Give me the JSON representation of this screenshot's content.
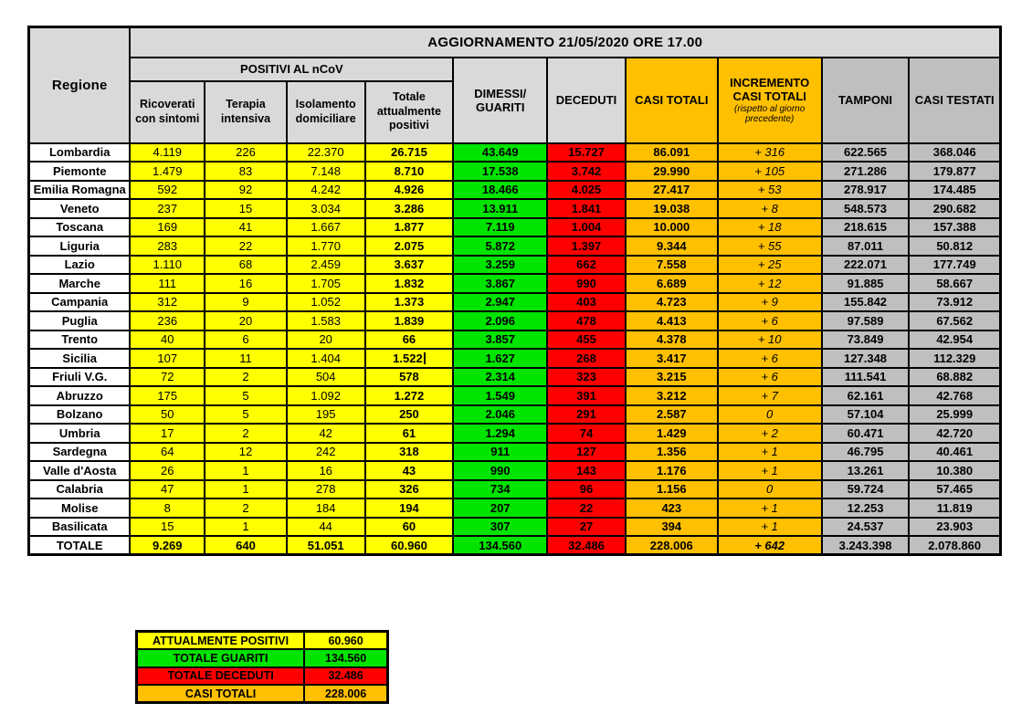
{
  "chart_data": {
    "type": "table",
    "title": "AGGIORNAMENTO 21/05/2020 ORE 17.00",
    "headers": {
      "regione": "Regione",
      "group_positivi": "POSITIVI AL nCoV",
      "ricoverati": "Ricoverati con sintomi",
      "terapia": "Terapia intensiva",
      "isolamento": "Isolamento domiciliare",
      "totale_positivi": "Totale attualmente positivi",
      "dimessi": "DIMESSI/ GUARITI",
      "deceduti": "DECEDUTI",
      "casi_totali": "CASI TOTALI",
      "incremento": "INCREMENTO CASI TOTALI",
      "incremento_note": "(rispetto al giorno precedente)",
      "tamponi": "TAMPONI",
      "casi_testati": "CASI TESTATI"
    },
    "rows": [
      {
        "regione": "Lombardia",
        "ricoverati": "4.119",
        "terapia": "226",
        "isolamento": "22.370",
        "totale_positivi": "26.715",
        "dimessi": "43.649",
        "deceduti": "15.727",
        "casi_totali": "86.091",
        "incremento": "+ 316",
        "tamponi": "622.565",
        "casi_testati": "368.046"
      },
      {
        "regione": "Piemonte",
        "ricoverati": "1.479",
        "terapia": "83",
        "isolamento": "7.148",
        "totale_positivi": "8.710",
        "dimessi": "17.538",
        "deceduti": "3.742",
        "casi_totali": "29.990",
        "incremento": "+ 105",
        "tamponi": "271.286",
        "casi_testati": "179.877"
      },
      {
        "regione": "Emilia Romagna",
        "ricoverati": "592",
        "terapia": "92",
        "isolamento": "4.242",
        "totale_positivi": "4.926",
        "dimessi": "18.466",
        "deceduti": "4.025",
        "casi_totali": "27.417",
        "incremento": "+ 53",
        "tamponi": "278.917",
        "casi_testati": "174.485"
      },
      {
        "regione": "Veneto",
        "ricoverati": "237",
        "terapia": "15",
        "isolamento": "3.034",
        "totale_positivi": "3.286",
        "dimessi": "13.911",
        "deceduti": "1.841",
        "casi_totali": "19.038",
        "incremento": "+ 8",
        "tamponi": "548.573",
        "casi_testati": "290.682"
      },
      {
        "regione": "Toscana",
        "ricoverati": "169",
        "terapia": "41",
        "isolamento": "1.667",
        "totale_positivi": "1.877",
        "dimessi": "7.119",
        "deceduti": "1.004",
        "casi_totali": "10.000",
        "incremento": "+ 18",
        "tamponi": "218.615",
        "casi_testati": "157.388"
      },
      {
        "regione": "Liguria",
        "ricoverati": "283",
        "terapia": "22",
        "isolamento": "1.770",
        "totale_positivi": "2.075",
        "dimessi": "5.872",
        "deceduti": "1.397",
        "casi_totali": "9.344",
        "incremento": "+ 55",
        "tamponi": "87.011",
        "casi_testati": "50.812"
      },
      {
        "regione": "Lazio",
        "ricoverati": "1.110",
        "terapia": "68",
        "isolamento": "2.459",
        "totale_positivi": "3.637",
        "dimessi": "3.259",
        "deceduti": "662",
        "casi_totali": "7.558",
        "incremento": "+ 25",
        "tamponi": "222.071",
        "casi_testati": "177.749"
      },
      {
        "regione": "Marche",
        "ricoverati": "111",
        "terapia": "16",
        "isolamento": "1.705",
        "totale_positivi": "1.832",
        "dimessi": "3.867",
        "deceduti": "990",
        "casi_totali": "6.689",
        "incremento": "+ 12",
        "tamponi": "91.885",
        "casi_testati": "58.667"
      },
      {
        "regione": "Campania",
        "ricoverati": "312",
        "terapia": "9",
        "isolamento": "1.052",
        "totale_positivi": "1.373",
        "dimessi": "2.947",
        "deceduti": "403",
        "casi_totali": "4.723",
        "incremento": "+ 9",
        "tamponi": "155.842",
        "casi_testati": "73.912"
      },
      {
        "regione": "Puglia",
        "ricoverati": "236",
        "terapia": "20",
        "isolamento": "1.583",
        "totale_positivi": "1.839",
        "dimessi": "2.096",
        "deceduti": "478",
        "casi_totali": "4.413",
        "incremento": "+ 6",
        "tamponi": "97.589",
        "casi_testati": "67.562"
      },
      {
        "regione": "Trento",
        "ricoverati": "40",
        "terapia": "6",
        "isolamento": "20",
        "totale_positivi": "66",
        "dimessi": "3.857",
        "deceduti": "455",
        "casi_totali": "4.378",
        "incremento": "+ 10",
        "tamponi": "73.849",
        "casi_testati": "42.954"
      },
      {
        "regione": "Sicilia",
        "ricoverati": "107",
        "terapia": "11",
        "isolamento": "1.404",
        "totale_positivi": "1.522",
        "dimessi": "1.627",
        "deceduti": "268",
        "casi_totali": "3.417",
        "incremento": "+ 6",
        "tamponi": "127.348",
        "casi_testati": "112.329"
      },
      {
        "regione": "Friuli V.G.",
        "ricoverati": "72",
        "terapia": "2",
        "isolamento": "504",
        "totale_positivi": "578",
        "dimessi": "2.314",
        "deceduti": "323",
        "casi_totali": "3.215",
        "incremento": "+ 6",
        "tamponi": "111.541",
        "casi_testati": "68.882"
      },
      {
        "regione": "Abruzzo",
        "ricoverati": "175",
        "terapia": "5",
        "isolamento": "1.092",
        "totale_positivi": "1.272",
        "dimessi": "1.549",
        "deceduti": "391",
        "casi_totali": "3.212",
        "incremento": "+ 7",
        "tamponi": "62.161",
        "casi_testati": "42.768"
      },
      {
        "regione": "Bolzano",
        "ricoverati": "50",
        "terapia": "5",
        "isolamento": "195",
        "totale_positivi": "250",
        "dimessi": "2.046",
        "deceduti": "291",
        "casi_totali": "2.587",
        "incremento": "0",
        "tamponi": "57.104",
        "casi_testati": "25.999"
      },
      {
        "regione": "Umbria",
        "ricoverati": "17",
        "terapia": "2",
        "isolamento": "42",
        "totale_positivi": "61",
        "dimessi": "1.294",
        "deceduti": "74",
        "casi_totali": "1.429",
        "incremento": "+ 2",
        "tamponi": "60.471",
        "casi_testati": "42.720"
      },
      {
        "regione": "Sardegna",
        "ricoverati": "64",
        "terapia": "12",
        "isolamento": "242",
        "totale_positivi": "318",
        "dimessi": "911",
        "deceduti": "127",
        "casi_totali": "1.356",
        "incremento": "+ 1",
        "tamponi": "46.795",
        "casi_testati": "40.461"
      },
      {
        "regione": "Valle d'Aosta",
        "ricoverati": "26",
        "terapia": "1",
        "isolamento": "16",
        "totale_positivi": "43",
        "dimessi": "990",
        "deceduti": "143",
        "casi_totali": "1.176",
        "incremento": "+ 1",
        "tamponi": "13.261",
        "casi_testati": "10.380"
      },
      {
        "regione": "Calabria",
        "ricoverati": "47",
        "terapia": "1",
        "isolamento": "278",
        "totale_positivi": "326",
        "dimessi": "734",
        "deceduti": "96",
        "casi_totali": "1.156",
        "incremento": "0",
        "tamponi": "59.724",
        "casi_testati": "57.465"
      },
      {
        "regione": "Molise",
        "ricoverati": "8",
        "terapia": "2",
        "isolamento": "184",
        "totale_positivi": "194",
        "dimessi": "207",
        "deceduti": "22",
        "casi_totali": "423",
        "incremento": "+ 1",
        "tamponi": "12.253",
        "casi_testati": "11.819"
      },
      {
        "regione": "Basilicata",
        "ricoverati": "15",
        "terapia": "1",
        "isolamento": "44",
        "totale_positivi": "60",
        "dimessi": "307",
        "deceduti": "27",
        "casi_totali": "394",
        "incremento": "+ 1",
        "tamponi": "24.537",
        "casi_testati": "23.903"
      }
    ],
    "totale": {
      "regione": "TOTALE",
      "ricoverati": "9.269",
      "terapia": "640",
      "isolamento": "51.051",
      "totale_positivi": "60.960",
      "dimessi": "134.560",
      "deceduti": "32.486",
      "casi_totali": "228.006",
      "incremento": "+ 642",
      "tamponi": "3.243.398",
      "casi_testati": "2.078.860"
    },
    "summary_rows": [
      {
        "label": "ATTUALMENTE POSITIVI",
        "value": "60.960",
        "color": "yellow"
      },
      {
        "label": "TOTALE GUARITI",
        "value": "134.560",
        "color": "green"
      },
      {
        "label": "TOTALE DECEDUTI",
        "value": "32.486",
        "color": "red"
      },
      {
        "label": "CASI TOTALI",
        "value": "228.006",
        "color": "orange"
      }
    ]
  },
  "cursor": {
    "region": "Sicilia",
    "column": "totale_positivi"
  },
  "colors": {
    "header_light_gray": "#D9D9D9",
    "column_gray": "#BFBFBF",
    "positivi_yellow": "#FFFF00",
    "guariti_green": "#00E400",
    "deceduti_red": "#FF0000",
    "totali_orange": "#FFC000",
    "border_black": "#000000",
    "page_background": "#FFFFFF"
  }
}
